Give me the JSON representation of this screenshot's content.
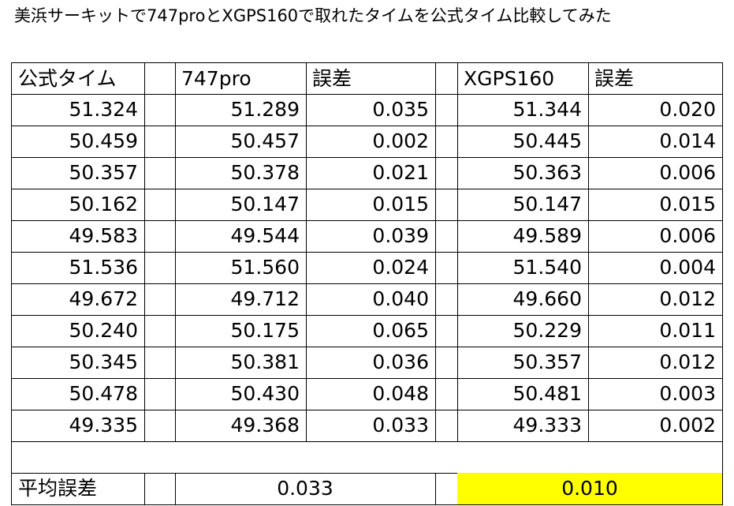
{
  "title": "美浜サーキットで747proとXGPS160で取れたタイムを公式タイム比較してみた",
  "table": {
    "header": [
      "公式タイム",
      "747pro",
      "誤差",
      "XGPS160",
      "誤差"
    ],
    "rows": [
      [
        "51.324",
        "51.289",
        "0.035",
        "51.344",
        "0.020"
      ],
      [
        "50.459",
        "50.457",
        "0.002",
        "50.445",
        "0.014"
      ],
      [
        "50.357",
        "50.378",
        "0.021",
        "50.363",
        "0.006"
      ],
      [
        "50.162",
        "50.147",
        "0.015",
        "50.147",
        "0.015"
      ],
      [
        "49.583",
        "49.544",
        "0.039",
        "49.589",
        "0.006"
      ],
      [
        "51.536",
        "51.560",
        "0.024",
        "51.540",
        "0.004"
      ],
      [
        "49.672",
        "49.712",
        "0.040",
        "49.660",
        "0.012"
      ],
      [
        "50.240",
        "50.175",
        "0.065",
        "50.229",
        "0.011"
      ],
      [
        "50.345",
        "50.381",
        "0.036",
        "50.357",
        "0.012"
      ],
      [
        "50.478",
        "50.430",
        "0.048",
        "50.481",
        "0.003"
      ],
      [
        "49.335",
        "49.368",
        "0.033",
        "49.333",
        "0.002"
      ]
    ],
    "average": [
      "平均誤差",
      "0.033",
      "0.010"
    ]
  }
}
